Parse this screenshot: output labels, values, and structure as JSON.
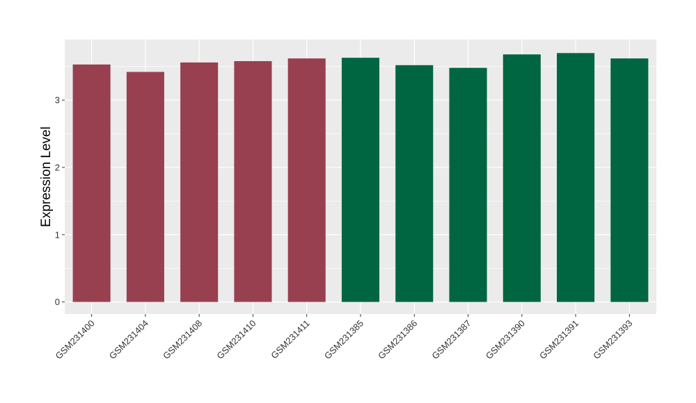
{
  "chart_data": {
    "type": "bar",
    "title": "",
    "xlabel": "",
    "ylabel": "Expression Level",
    "categories": [
      "GSM231400",
      "GSM231404",
      "GSM231408",
      "GSM231410",
      "GSM231411",
      "GSM231385",
      "GSM231386",
      "GSM231387",
      "GSM231390",
      "GSM231391",
      "GSM231393"
    ],
    "values": [
      3.53,
      3.42,
      3.56,
      3.58,
      3.62,
      3.63,
      3.52,
      3.48,
      3.68,
      3.7,
      3.62
    ],
    "bar_colors": [
      "#98404F",
      "#98404F",
      "#98404F",
      "#98404F",
      "#98404F",
      "#006642",
      "#006642",
      "#006642",
      "#006642",
      "#006642",
      "#006642"
    ],
    "yticks": [
      "0",
      "1",
      "2",
      "3"
    ],
    "ylim": [
      -0.18,
      3.9
    ],
    "grid": true,
    "panel_color": "#EBEBEB",
    "legend": "none"
  }
}
